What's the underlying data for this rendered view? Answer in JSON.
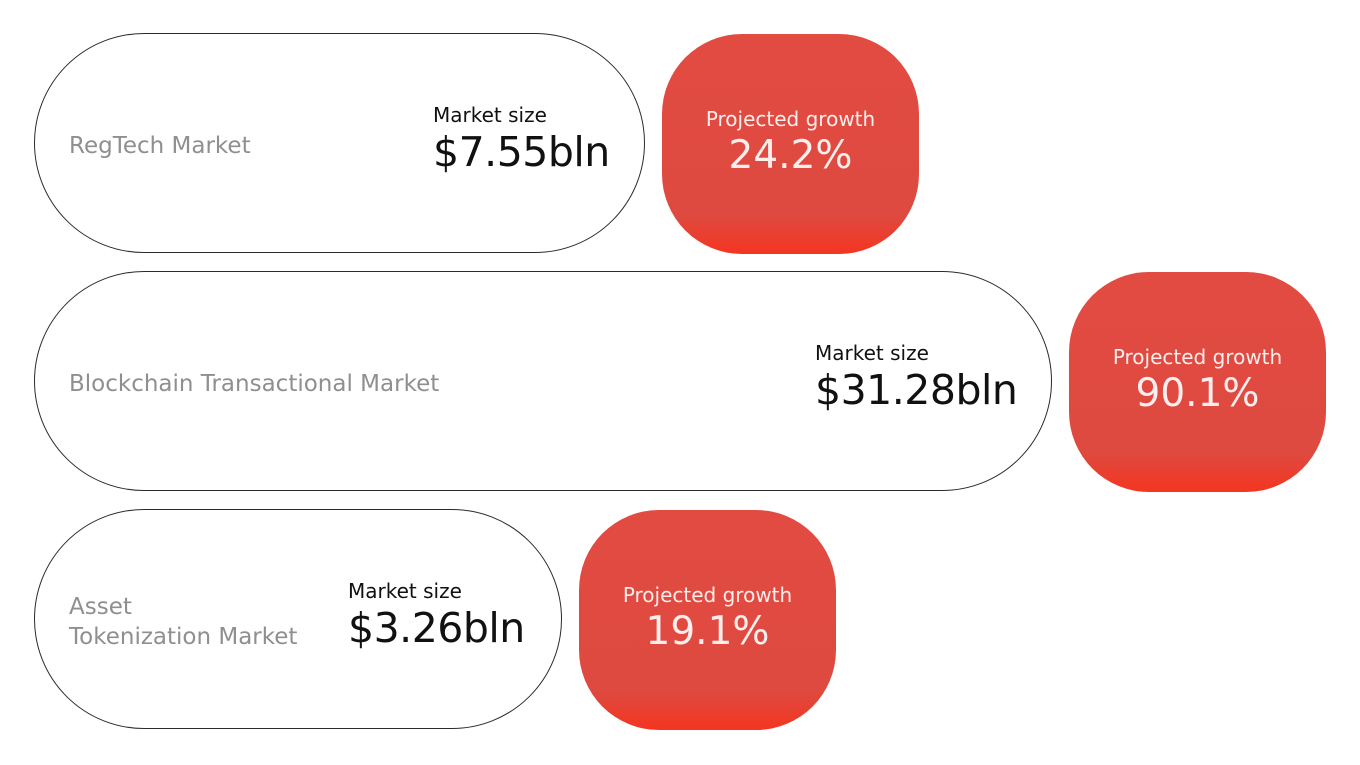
{
  "markets": [
    {
      "name": "RegTech Market",
      "size_label": "Market size",
      "size_value": "$7.55bln",
      "growth_label": "Projected growth",
      "growth_value": "24.2%"
    },
    {
      "name": "Blockchain Transactional Market",
      "size_label": "Market size",
      "size_value": "$31.28bln",
      "growth_label": "Projected growth",
      "growth_value": "90.1%"
    },
    {
      "name": "Asset\nTokenization Market",
      "size_label": "Market size",
      "size_value": "$3.26bln",
      "growth_label": "Projected growth",
      "growth_value": "19.1%"
    }
  ],
  "colors": {
    "growth_badge": "#e24b42",
    "growth_badge_bottom": "#f43521",
    "market_name": "#8f8f8f",
    "pill_border": "#2b2b2b",
    "value_text": "#111111"
  }
}
